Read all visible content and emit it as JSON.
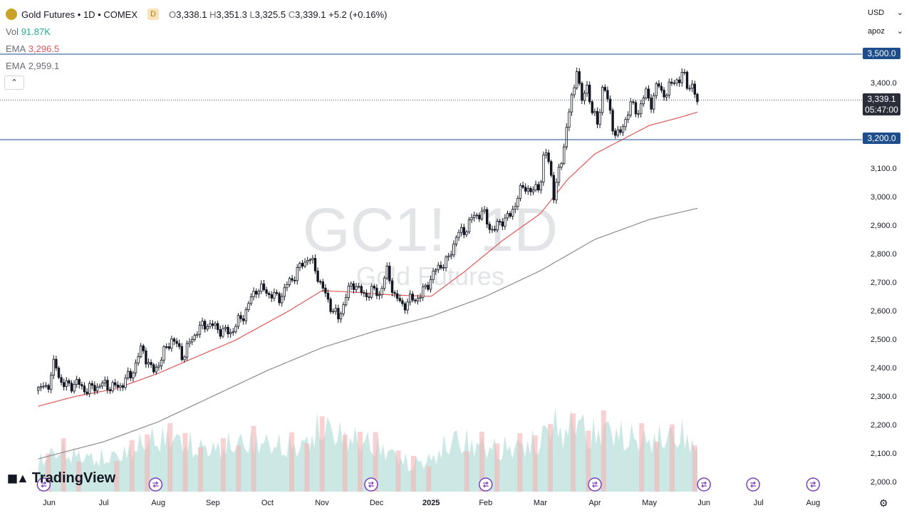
{
  "legend": {
    "symbol_name": "Gold Futures",
    "interval": "1D",
    "exchange": "COMEX",
    "badge": "D",
    "open_label": "O",
    "open": "3,338.1",
    "high_label": "H",
    "high": "3,351.3",
    "low_label": "L",
    "low": "3,325.5",
    "close_label": "C",
    "close": "3,339.1",
    "change": "+5.2 (+0.16%)",
    "vol_label": "Vol",
    "vol": "91.87K",
    "ema1_label": "EMA",
    "ema1": "3,296.5",
    "ema2_label": "EMA",
    "ema2": "2,959.1",
    "collapse_glyph": "⌃"
  },
  "top_right": {
    "currency": "USD",
    "session": "apoz"
  },
  "watermark": {
    "symbol": "GC1!, 1D",
    "name": "Gold Futures"
  },
  "brand": {
    "name": "TradingView"
  },
  "price_badges": {
    "level_high": "3,500.0",
    "last_price": "3,339.1",
    "countdown": "05:47:00",
    "level_low": "3,200.0"
  },
  "colors": {
    "up": "#131722",
    "down": "#131722",
    "ema_fast": "#e05757",
    "ema_slow": "#8c8c8c",
    "level_line": "#1e4d8c",
    "vol_up": "#a8d8d4",
    "vol_down": "#f4b4b4",
    "event_icon": "#7b3fb8"
  },
  "chart_data": {
    "type": "candlestick",
    "y_axis": {
      "range": [
        1965,
        3555
      ],
      "ticks": [
        2000,
        2100,
        2200,
        2300,
        2400,
        2500,
        2600,
        2700,
        2800,
        2900,
        3000,
        3100,
        3200,
        3300,
        3400,
        3500
      ],
      "tick_labels": [
        "2,000.0",
        "2,100.0",
        "2,200.0",
        "2,300.0",
        "2,400.0",
        "2,500.0",
        "2,600.0",
        "2,700.0",
        "2,800.0",
        "2,900.0",
        "3,000.0",
        "3,100.0",
        "3,200.0",
        "3,300.0",
        "3,400.0",
        "3,500.0"
      ]
    },
    "x_axis": {
      "labels": [
        {
          "label": "Jun",
          "month": 0
        },
        {
          "label": "Jul",
          "month": 1
        },
        {
          "label": "Aug",
          "month": 2
        },
        {
          "label": "Sep",
          "month": 3
        },
        {
          "label": "Oct",
          "month": 4
        },
        {
          "label": "Nov",
          "month": 5
        },
        {
          "label": "Dec",
          "month": 6
        },
        {
          "label": "2025",
          "month": 7
        },
        {
          "label": "Feb",
          "month": 8
        },
        {
          "label": "Mar",
          "month": 9
        },
        {
          "label": "Apr",
          "month": 10
        },
        {
          "label": "May",
          "month": 11
        },
        {
          "label": "Jun",
          "month": 12
        },
        {
          "label": "Jul",
          "month": 13
        },
        {
          "label": "Aug",
          "month": 14
        }
      ]
    },
    "horizontal_levels": [
      3500,
      3200
    ],
    "last_price": 3339.1,
    "close_path": [
      [
        -0.2,
        2320
      ],
      [
        0.0,
        2345
      ],
      [
        0.1,
        2420
      ],
      [
        0.25,
        2335
      ],
      [
        0.5,
        2345
      ],
      [
        0.7,
        2320
      ],
      [
        0.85,
        2335
      ],
      [
        1.0,
        2340
      ],
      [
        1.25,
        2330
      ],
      [
        1.5,
        2375
      ],
      [
        1.7,
        2470
      ],
      [
        1.9,
        2380
      ],
      [
        2.1,
        2450
      ],
      [
        2.25,
        2505
      ],
      [
        2.45,
        2440
      ],
      [
        2.7,
        2530
      ],
      [
        2.9,
        2555
      ],
      [
        3.05,
        2540
      ],
      [
        3.3,
        2520
      ],
      [
        3.55,
        2580
      ],
      [
        3.8,
        2680
      ],
      [
        4.0,
        2665
      ],
      [
        4.2,
        2640
      ],
      [
        4.4,
        2700
      ],
      [
        4.55,
        2740
      ],
      [
        4.75,
        2790
      ],
      [
        4.9,
        2735
      ],
      [
        5.0,
        2680
      ],
      [
        5.15,
        2620
      ],
      [
        5.3,
        2570
      ],
      [
        5.45,
        2660
      ],
      [
        5.6,
        2700
      ],
      [
        5.75,
        2650
      ],
      [
        5.9,
        2670
      ],
      [
        6.05,
        2660
      ],
      [
        6.2,
        2740
      ],
      [
        6.35,
        2640
      ],
      [
        6.5,
        2620
      ],
      [
        6.65,
        2640
      ],
      [
        6.8,
        2650
      ],
      [
        6.95,
        2700
      ],
      [
        7.15,
        2760
      ],
      [
        7.3,
        2770
      ],
      [
        7.45,
        2860
      ],
      [
        7.6,
        2880
      ],
      [
        7.8,
        2935
      ],
      [
        7.95,
        2945
      ],
      [
        8.05,
        2900
      ],
      [
        8.15,
        2880
      ],
      [
        8.3,
        2920
      ],
      [
        8.45,
        2930
      ],
      [
        8.6,
        3010
      ],
      [
        8.75,
        3040
      ],
      [
        8.85,
        3010
      ],
      [
        9.0,
        3050
      ],
      [
        9.08,
        3160
      ],
      [
        9.18,
        3110
      ],
      [
        9.25,
        3000
      ],
      [
        9.38,
        3120
      ],
      [
        9.48,
        3240
      ],
      [
        9.55,
        3320
      ],
      [
        9.62,
        3380
      ],
      [
        9.68,
        3480
      ],
      [
        9.75,
        3310
      ],
      [
        9.85,
        3400
      ],
      [
        9.95,
        3300
      ],
      [
        10.05,
        3250
      ],
      [
        10.15,
        3400
      ],
      [
        10.25,
        3320
      ],
      [
        10.35,
        3230
      ],
      [
        10.45,
        3210
      ],
      [
        10.55,
        3270
      ],
      [
        10.65,
        3320
      ],
      [
        10.8,
        3300
      ],
      [
        10.95,
        3370
      ],
      [
        11.05,
        3320
      ],
      [
        11.15,
        3400
      ],
      [
        11.3,
        3350
      ],
      [
        11.45,
        3420
      ],
      [
        11.55,
        3395
      ],
      [
        11.62,
        3445
      ],
      [
        11.7,
        3395
      ],
      [
        11.8,
        3370
      ],
      [
        11.88,
        3339
      ]
    ],
    "series": [
      {
        "name": "EMA",
        "value": 3296.5,
        "path": [
          [
            -0.2,
            2265
          ],
          [
            0.5,
            2300
          ],
          [
            1.2,
            2325
          ],
          [
            2.0,
            2380
          ],
          [
            2.6,
            2430
          ],
          [
            3.4,
            2495
          ],
          [
            4.4,
            2600
          ],
          [
            5.0,
            2670
          ],
          [
            5.6,
            2665
          ],
          [
            6.3,
            2655
          ],
          [
            7.0,
            2650
          ],
          [
            7.6,
            2735
          ],
          [
            8.3,
            2845
          ],
          [
            9.0,
            2940
          ],
          [
            9.5,
            3060
          ],
          [
            10.0,
            3150
          ],
          [
            10.5,
            3200
          ],
          [
            11.0,
            3250
          ],
          [
            11.5,
            3275
          ],
          [
            11.88,
            3296.5
          ]
        ]
      },
      {
        "name": "EMA",
        "value": 2959.1,
        "path": [
          [
            -0.2,
            2080
          ],
          [
            1.0,
            2140
          ],
          [
            2.0,
            2210
          ],
          [
            3.0,
            2300
          ],
          [
            4.0,
            2390
          ],
          [
            5.0,
            2470
          ],
          [
            6.0,
            2530
          ],
          [
            7.0,
            2580
          ],
          [
            8.0,
            2650
          ],
          [
            9.0,
            2740
          ],
          [
            10.0,
            2850
          ],
          [
            11.0,
            2920
          ],
          [
            11.88,
            2959.1
          ]
        ]
      }
    ],
    "volume_path": [
      [
        -0.2,
        0.34
      ],
      [
        0.2,
        0.45
      ],
      [
        0.6,
        0.38
      ],
      [
        1.0,
        0.36
      ],
      [
        1.4,
        0.42
      ],
      [
        1.8,
        0.55
      ],
      [
        2.2,
        0.6
      ],
      [
        2.6,
        0.5
      ],
      [
        3.0,
        0.46
      ],
      [
        3.4,
        0.52
      ],
      [
        3.8,
        0.55
      ],
      [
        4.2,
        0.5
      ],
      [
        4.6,
        0.48
      ],
      [
        5.0,
        0.72
      ],
      [
        5.4,
        0.6
      ],
      [
        5.8,
        0.54
      ],
      [
        6.2,
        0.45
      ],
      [
        6.6,
        0.3
      ],
      [
        7.0,
        0.35
      ],
      [
        7.4,
        0.58
      ],
      [
        7.8,
        0.52
      ],
      [
        8.2,
        0.46
      ],
      [
        8.6,
        0.5
      ],
      [
        9.0,
        0.55
      ],
      [
        9.2,
        0.78
      ],
      [
        9.45,
        0.62
      ],
      [
        9.65,
        0.82
      ],
      [
        9.9,
        0.6
      ],
      [
        10.2,
        0.7
      ],
      [
        10.5,
        0.62
      ],
      [
        10.9,
        0.55
      ],
      [
        11.3,
        0.6
      ],
      [
        11.7,
        0.62
      ],
      [
        11.88,
        0.4
      ]
    ],
    "event_markers": [
      {
        "month": -0.1,
        "kind": "rollover"
      },
      {
        "month": 1.95,
        "kind": "rollover"
      },
      {
        "month": 5.9,
        "kind": "rollover"
      },
      {
        "month": 8.0,
        "kind": "rollover"
      },
      {
        "month": 10.0,
        "kind": "rollover"
      },
      {
        "month": 12.0,
        "kind": "rollover"
      },
      {
        "month": 12.9,
        "kind": "dividend-upcoming"
      },
      {
        "month": 14.0,
        "kind": "rollover"
      }
    ]
  }
}
